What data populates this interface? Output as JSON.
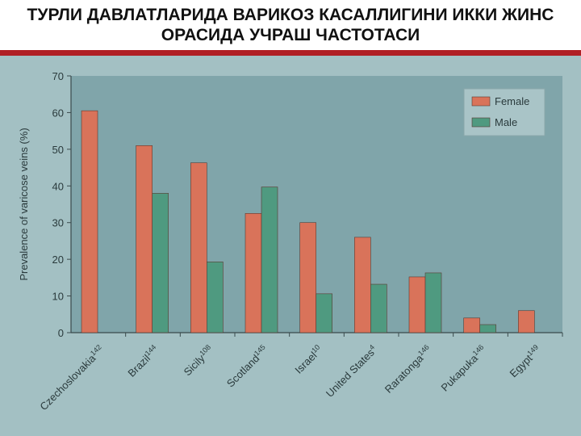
{
  "chart_data": {
    "type": "bar",
    "title": "ТУРЛИ ДАВЛАТЛАРИДА ВАРИКОЗ КАСАЛЛИГИНИ ИККИ ЖИНС ОРАСИДА УЧРАШ ЧАСТОТАСИ",
    "y_label": "Prevalence of varicose veins (%)",
    "categories": [
      "Czechoslovakia",
      "Brazil",
      "Sicily",
      "Scotland",
      "Israel",
      "United States",
      "Raratonga",
      "Pukapuka",
      "Egypt"
    ],
    "category_superscripts": [
      "142",
      "144",
      "108",
      "145",
      "10",
      "4",
      "146",
      "146",
      "149"
    ],
    "series": [
      {
        "name": "Female",
        "color": "#d9735a",
        "values": [
          60.5,
          51,
          46.3,
          32.5,
          30,
          26,
          15.2,
          4,
          6
        ]
      },
      {
        "name": "Male",
        "color": "#4f9a80",
        "values": [
          null,
          38,
          19.3,
          39.7,
          10.6,
          13.2,
          16.3,
          2.2,
          null
        ]
      }
    ],
    "ylim": [
      0,
      70
    ],
    "yticks": [
      0,
      10,
      20,
      30,
      40,
      50,
      60,
      70
    ],
    "grid": false,
    "legend": "upper right"
  }
}
